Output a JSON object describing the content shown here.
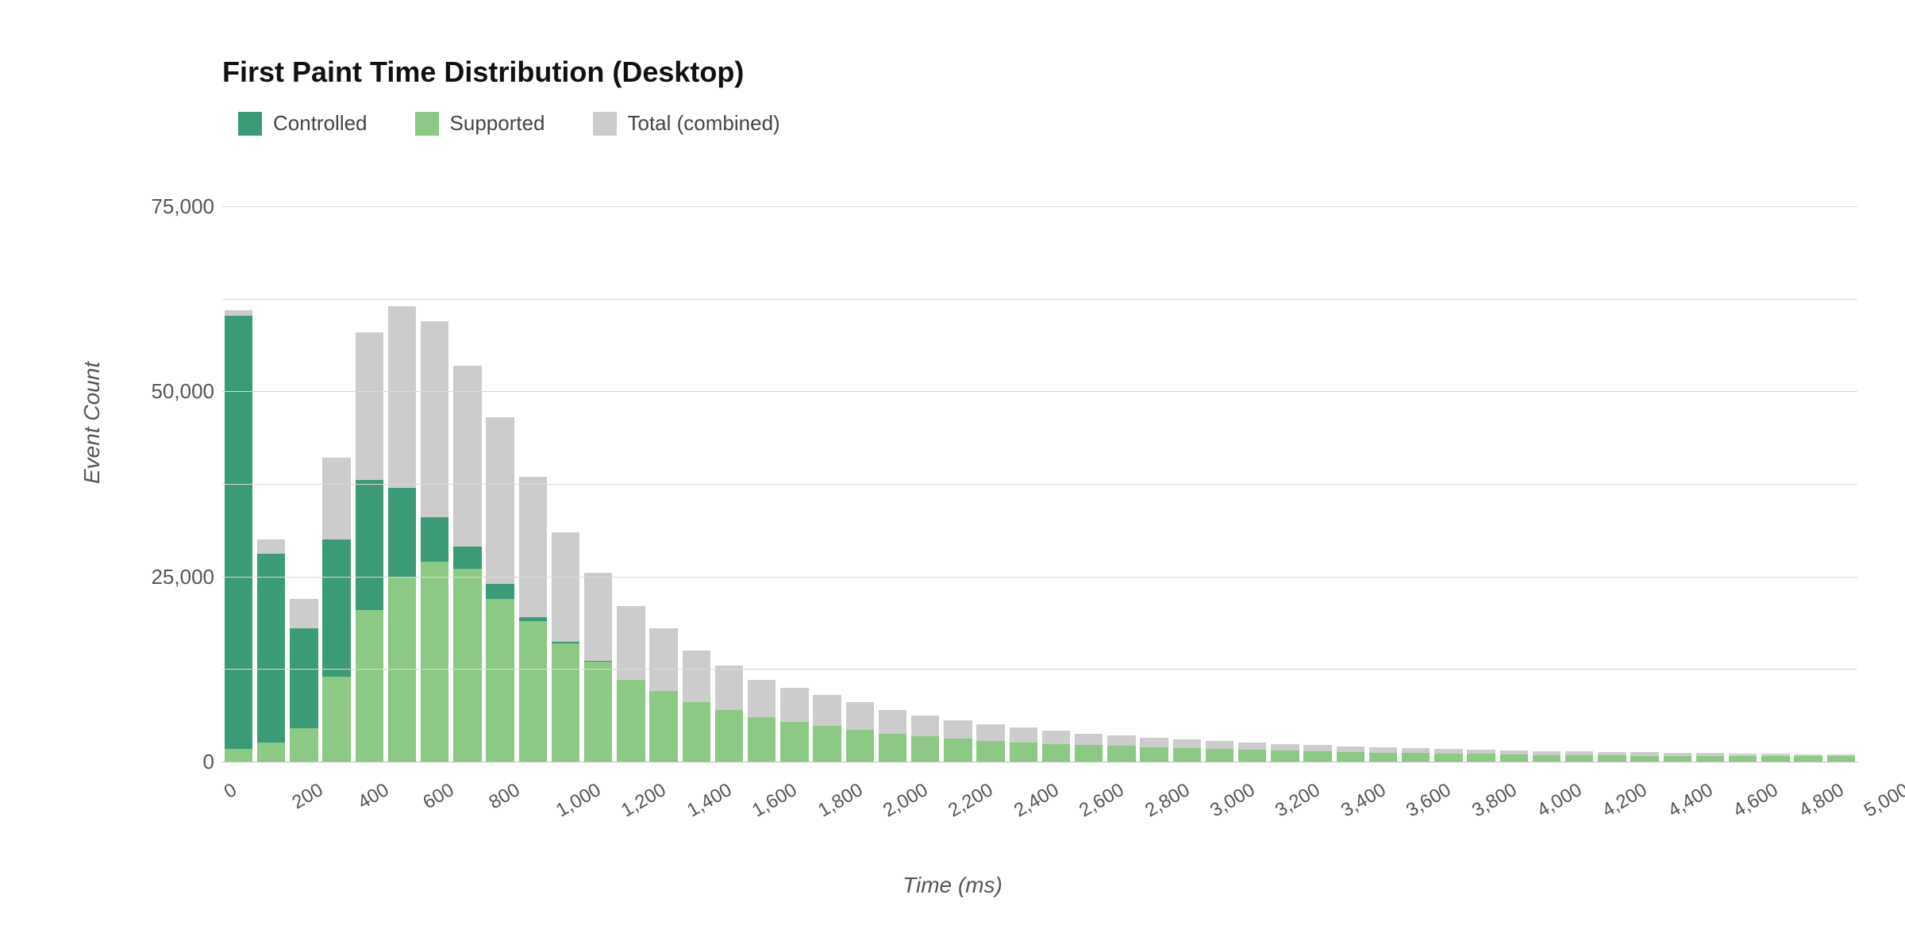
{
  "chart": {
    "type": "histogram",
    "title": "First Paint Time Distribution (Desktop)",
    "title_fontsize": 36,
    "xlabel": "Time (ms)",
    "ylabel": "Event Count",
    "label_fontsize": 28,
    "tick_fontsize": 26,
    "background_color": "#ffffff",
    "grid_color": "#d9d9d9",
    "baseline_color": "#bdbdbd",
    "legend_position": "top-left",
    "series_names": [
      "Controlled",
      "Supported",
      "Total (combined)"
    ],
    "series_colors": [
      "#3b9b76",
      "#8cc984",
      "#cccccc"
    ],
    "ylim": [
      0,
      75000
    ],
    "yticks": [
      0,
      25000,
      50000,
      75000
    ],
    "ytick_labels": [
      "0",
      "25,000",
      "50,000",
      "75,000"
    ],
    "minor_ylines": [
      12500,
      37500,
      62500
    ],
    "xlim": [
      0,
      5000
    ],
    "xtick_step": 200,
    "xtick_labels": [
      "0",
      "200",
      "400",
      "600",
      "800",
      "1,000",
      "1,200",
      "1,400",
      "1,600",
      "1,800",
      "2,000",
      "2,200",
      "2,400",
      "2,600",
      "2,800",
      "3,000",
      "3,200",
      "3,400",
      "3,600",
      "3,800",
      "4,000",
      "4,200",
      "4,400",
      "4,600",
      "4,800",
      "5,000"
    ],
    "bar_width_rel": 0.86,
    "bin_width": 100,
    "bins_start": [
      0,
      100,
      200,
      300,
      400,
      500,
      600,
      700,
      800,
      900,
      1000,
      1100,
      1200,
      1300,
      1400,
      1500,
      1600,
      1700,
      1800,
      1900,
      2000,
      2100,
      2200,
      2300,
      2400,
      2500,
      2600,
      2700,
      2800,
      2900,
      3000,
      3100,
      3200,
      3300,
      3400,
      3500,
      3600,
      3700,
      3800,
      3900,
      4000,
      4100,
      4200,
      4300,
      4400,
      4500,
      4600,
      4700,
      4800,
      4900
    ],
    "series": {
      "total": [
        61000,
        30000,
        22000,
        41000,
        58000,
        61500,
        59500,
        53500,
        46500,
        38500,
        31000,
        25500,
        21000,
        18000,
        15000,
        13000,
        11000,
        10000,
        9000,
        8000,
        7000,
        6200,
        5600,
        5000,
        4600,
        4200,
        3800,
        3500,
        3200,
        3000,
        2800,
        2600,
        2400,
        2200,
        2000,
        1900,
        1800,
        1700,
        1600,
        1500,
        1400,
        1400,
        1300,
        1300,
        1200,
        1200,
        1100,
        1100,
        1000,
        1000
      ],
      "supported": [
        1700,
        2600,
        4500,
        11500,
        20500,
        25000,
        27000,
        26000,
        22000,
        19000,
        16000,
        13500,
        11000,
        9500,
        8000,
        7000,
        6000,
        5400,
        4800,
        4300,
        3800,
        3400,
        3100,
        2800,
        2600,
        2400,
        2200,
        2100,
        1900,
        1800,
        1700,
        1600,
        1500,
        1400,
        1300,
        1200,
        1200,
        1100,
        1100,
        1000,
        900,
        900,
        900,
        800,
        800,
        800,
        700,
        700,
        700,
        700
      ],
      "controlled": [
        58500,
        25500,
        13500,
        18500,
        17500,
        12000,
        6000,
        3000,
        2000,
        500,
        200,
        100,
        0,
        0,
        0,
        0,
        0,
        0,
        0,
        0,
        0,
        0,
        0,
        0,
        0,
        0,
        0,
        0,
        0,
        0,
        0,
        0,
        0,
        0,
        0,
        0,
        0,
        0,
        0,
        0,
        0,
        0,
        0,
        0,
        0,
        0,
        0,
        0,
        0,
        0
      ]
    }
  }
}
